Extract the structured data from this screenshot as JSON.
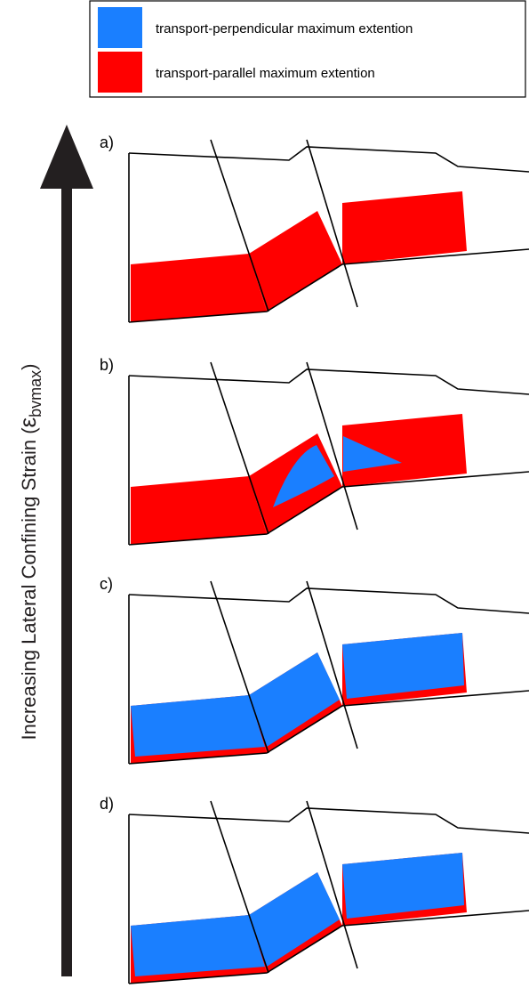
{
  "legend": {
    "items": [
      {
        "label": "transport-perpendicular maximum extention",
        "color": "#1a7fff"
      },
      {
        "label": "transport-parallel maximum extention",
        "color": "#ff0000"
      }
    ]
  },
  "axis_label": {
    "prefix": "Increasing  Lateral Confining Strain (",
    "symbol": "ε",
    "subscript": "bvmax",
    "suffix": ")"
  },
  "panels": [
    {
      "label": "a)"
    },
    {
      "label": "b)"
    },
    {
      "label": "c)"
    },
    {
      "label": "d)"
    }
  ]
}
